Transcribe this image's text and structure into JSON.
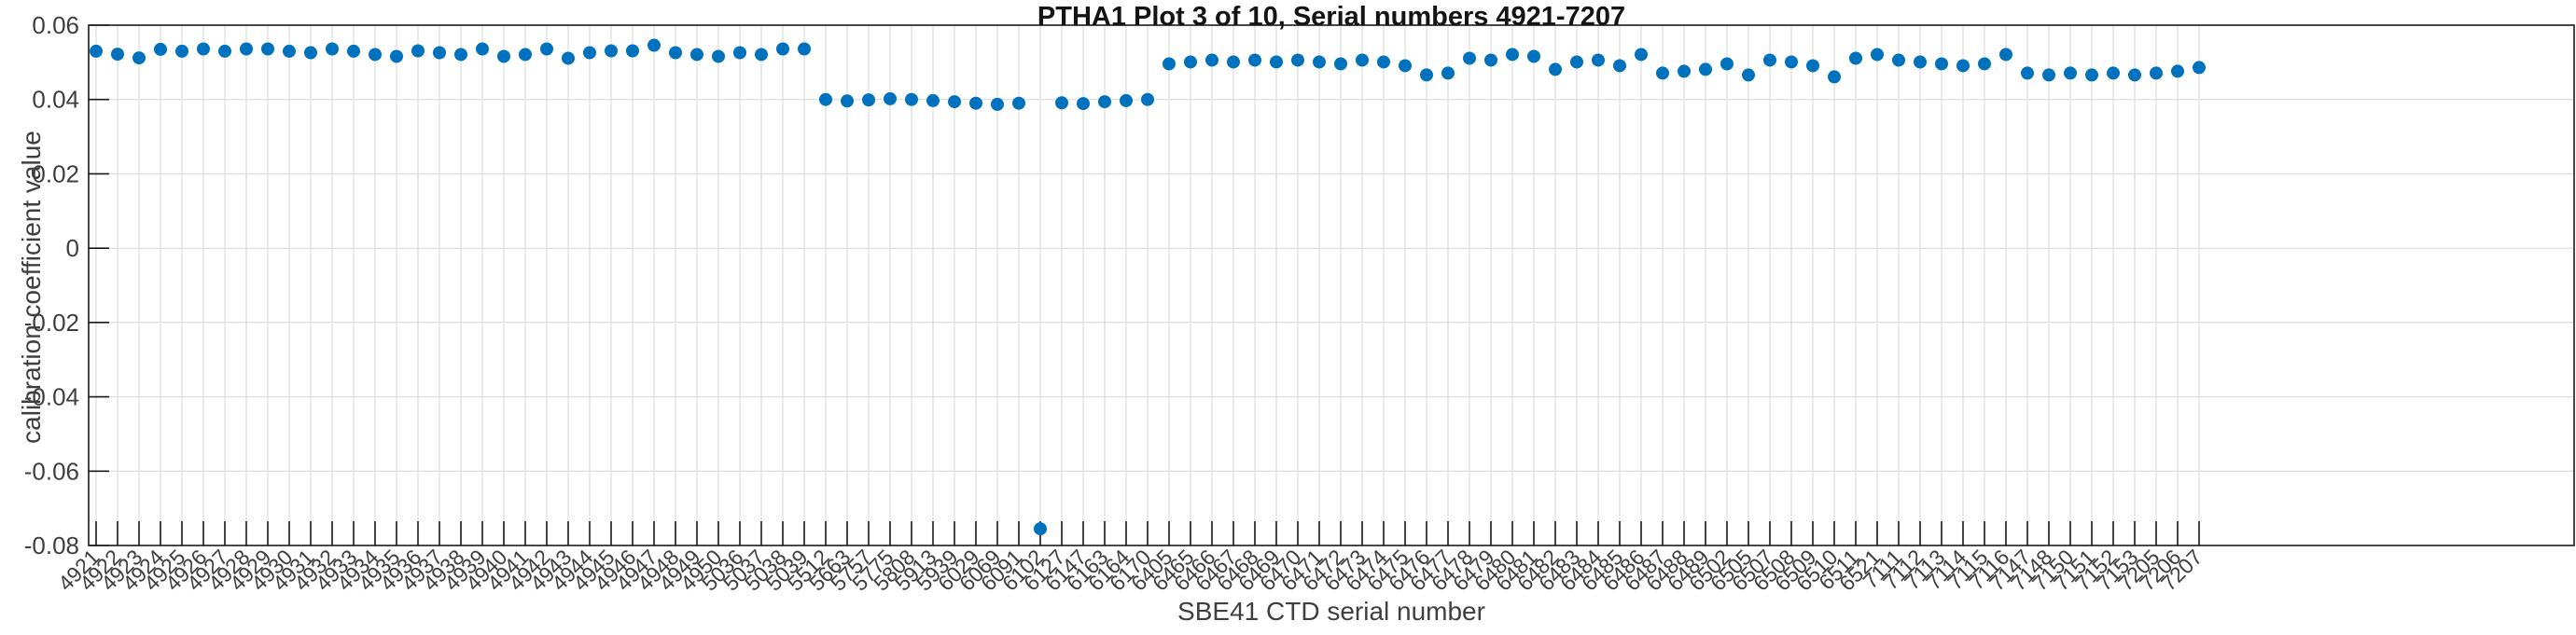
{
  "chart_data": {
    "type": "scatter",
    "title": "PTHA1 Plot 3 of 10, Serial numbers 4921-7207",
    "xlabel": "SBE41 CTD serial number",
    "ylabel": "calibration coefficient value",
    "ylim": [
      -0.08,
      0.06
    ],
    "grid": true,
    "legend": "none",
    "marker": "dot",
    "colors": {
      "marker": "#0072bd",
      "grid": "#e0e0e0",
      "axis": "#1a1a1a",
      "tick_label": "#3f3f3f"
    },
    "yticks": [
      {
        "label": "0.06",
        "value": 0.06
      },
      {
        "label": "0.04",
        "value": 0.04
      },
      {
        "label": "0.02",
        "value": 0.02
      },
      {
        "label": "0",
        "value": 0.0
      },
      {
        "label": "-0.02",
        "value": -0.02
      },
      {
        "label": "-0.04",
        "value": -0.04
      },
      {
        "label": "-0.06",
        "value": -0.06
      },
      {
        "label": "-0.08",
        "value": -0.08
      }
    ],
    "categories": [
      "4921",
      "4922",
      "4923",
      "4924",
      "4925",
      "4926",
      "4927",
      "4928",
      "4929",
      "4930",
      "4931",
      "4932",
      "4933",
      "4934",
      "4935",
      "4936",
      "4937",
      "4938",
      "4939",
      "4940",
      "4941",
      "4942",
      "4943",
      "4944",
      "4945",
      "4946",
      "4947",
      "4948",
      "4949",
      "4950",
      "5036",
      "5037",
      "5038",
      "5039",
      "5512",
      "5663",
      "5757",
      "5775",
      "5808",
      "5913",
      "5939",
      "6029",
      "6069",
      "6091",
      "6102",
      "6127",
      "6147",
      "6163",
      "6164",
      "6170",
      "6405",
      "6465",
      "6466",
      "6467",
      "6468",
      "6469",
      "6470",
      "6471",
      "6472",
      "6473",
      "6474",
      "6475",
      "6476",
      "6477",
      "6478",
      "6479",
      "6480",
      "6481",
      "6482",
      "6483",
      "6484",
      "6485",
      "6486",
      "6487",
      "6488",
      "6489",
      "6502",
      "6505",
      "6507",
      "6508",
      "6509",
      "6510",
      "6511",
      "6521",
      "7111",
      "7112",
      "7113",
      "7114",
      "7115",
      "7116",
      "7147",
      "7148",
      "7150",
      "7151",
      "7152",
      "7153",
      "7205",
      "7206",
      "7207"
    ],
    "values": [
      0.053,
      0.0522,
      0.0512,
      0.0535,
      0.053,
      0.0536,
      0.053,
      0.0536,
      0.0536,
      0.053,
      0.0526,
      0.0536,
      0.053,
      0.0521,
      0.0516,
      0.0531,
      0.0526,
      0.0521,
      0.0536,
      0.0516,
      0.0521,
      0.0536,
      0.0511,
      0.0526,
      0.0531,
      0.0531,
      0.0546,
      0.0526,
      0.0521,
      0.0516,
      0.0526,
      0.0521,
      0.0536,
      0.0536,
      0.04,
      0.0396,
      0.0399,
      0.0402,
      0.04,
      0.0397,
      0.0394,
      0.039,
      0.0387,
      0.039,
      -0.0755,
      0.0391,
      0.0389,
      0.0394,
      0.0397,
      0.04,
      0.0496,
      0.0501,
      0.0506,
      0.0501,
      0.0506,
      0.0501,
      0.0506,
      0.0501,
      0.0496,
      0.0506,
      0.0501,
      0.0491,
      0.0466,
      0.0471,
      0.0511,
      0.0506,
      0.0521,
      0.0516,
      0.0481,
      0.0501,
      0.0506,
      0.0491,
      0.0521,
      0.0471,
      0.0476,
      0.0481,
      0.0496,
      0.0466,
      0.0506,
      0.0501,
      0.0491,
      0.0461,
      0.0511,
      0.0521,
      0.0506,
      0.0501,
      0.0496,
      0.0491,
      0.0496,
      0.0521,
      0.0471,
      0.0466,
      0.0471,
      0.0466,
      0.0471,
      0.0466,
      0.0471,
      0.0476,
      0.0486
    ],
    "annotations": {
      "outlier_serial": "6102",
      "outlier_value": -0.0755
    }
  }
}
